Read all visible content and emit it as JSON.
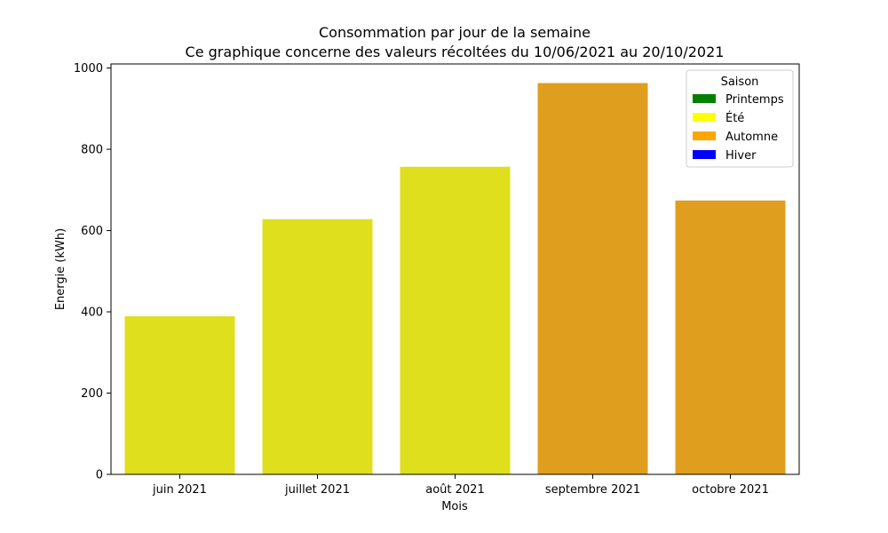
{
  "chart_data": {
    "type": "bar",
    "title": "Consommation par jour de la semaine",
    "subtitle": "Ce graphique concerne des valeurs récoltées du 10/06/2021 au 20/10/2021",
    "xlabel": "Mois",
    "ylabel": "Energie (kWh)",
    "categories": [
      "juin 2021",
      "juillet 2021",
      "août 2021",
      "septembre 2021",
      "octobre 2021"
    ],
    "values": [
      389,
      628,
      757,
      963,
      674
    ],
    "bar_seasons": [
      "Été",
      "Été",
      "Été",
      "Automne",
      "Automne"
    ],
    "bar_colors": [
      "#dfdf1d",
      "#dfdf1d",
      "#dfdf1d",
      "#e09e1f",
      "#e09e1f"
    ],
    "ylim": [
      0,
      1010
    ],
    "yticks": [
      0,
      200,
      400,
      600,
      800,
      1000
    ],
    "grid": false,
    "legend": {
      "title": "Saison",
      "placement": "top-right",
      "entries": [
        {
          "label": "Printemps",
          "color": "#008000"
        },
        {
          "label": "Été",
          "color": "#ffff00"
        },
        {
          "label": "Automne",
          "color": "#ffa500"
        },
        {
          "label": "Hiver",
          "color": "#0000ff"
        }
      ]
    }
  }
}
